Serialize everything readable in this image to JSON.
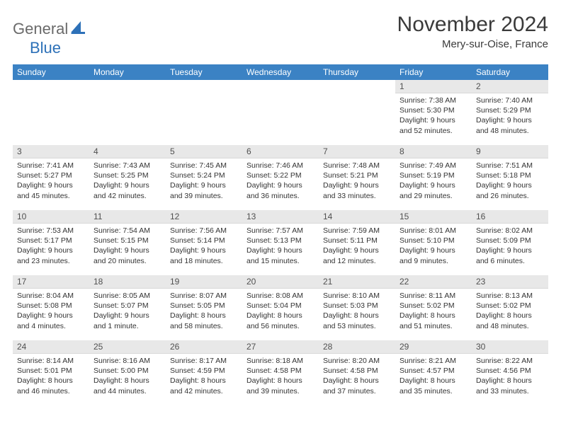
{
  "brand": {
    "part1": "General",
    "part2": "Blue"
  },
  "title": "November 2024",
  "location": "Mery-sur-Oise, France",
  "colors": {
    "header_bg": "#3b82c4",
    "header_text": "#ffffff",
    "daynum_bg": "#e8e8e8",
    "body_text": "#333333",
    "logo_gray": "#6a6a6a",
    "logo_blue": "#2d71b8"
  },
  "day_headers": [
    "Sunday",
    "Monday",
    "Tuesday",
    "Wednesday",
    "Thursday",
    "Friday",
    "Saturday"
  ],
  "weeks": [
    [
      null,
      null,
      null,
      null,
      null,
      {
        "n": "1",
        "sunrise": "Sunrise: 7:38 AM",
        "sunset": "Sunset: 5:30 PM",
        "daylight": "Daylight: 9 hours and 52 minutes."
      },
      {
        "n": "2",
        "sunrise": "Sunrise: 7:40 AM",
        "sunset": "Sunset: 5:29 PM",
        "daylight": "Daylight: 9 hours and 48 minutes."
      }
    ],
    [
      {
        "n": "3",
        "sunrise": "Sunrise: 7:41 AM",
        "sunset": "Sunset: 5:27 PM",
        "daylight": "Daylight: 9 hours and 45 minutes."
      },
      {
        "n": "4",
        "sunrise": "Sunrise: 7:43 AM",
        "sunset": "Sunset: 5:25 PM",
        "daylight": "Daylight: 9 hours and 42 minutes."
      },
      {
        "n": "5",
        "sunrise": "Sunrise: 7:45 AM",
        "sunset": "Sunset: 5:24 PM",
        "daylight": "Daylight: 9 hours and 39 minutes."
      },
      {
        "n": "6",
        "sunrise": "Sunrise: 7:46 AM",
        "sunset": "Sunset: 5:22 PM",
        "daylight": "Daylight: 9 hours and 36 minutes."
      },
      {
        "n": "7",
        "sunrise": "Sunrise: 7:48 AM",
        "sunset": "Sunset: 5:21 PM",
        "daylight": "Daylight: 9 hours and 33 minutes."
      },
      {
        "n": "8",
        "sunrise": "Sunrise: 7:49 AM",
        "sunset": "Sunset: 5:19 PM",
        "daylight": "Daylight: 9 hours and 29 minutes."
      },
      {
        "n": "9",
        "sunrise": "Sunrise: 7:51 AM",
        "sunset": "Sunset: 5:18 PM",
        "daylight": "Daylight: 9 hours and 26 minutes."
      }
    ],
    [
      {
        "n": "10",
        "sunrise": "Sunrise: 7:53 AM",
        "sunset": "Sunset: 5:17 PM",
        "daylight": "Daylight: 9 hours and 23 minutes."
      },
      {
        "n": "11",
        "sunrise": "Sunrise: 7:54 AM",
        "sunset": "Sunset: 5:15 PM",
        "daylight": "Daylight: 9 hours and 20 minutes."
      },
      {
        "n": "12",
        "sunrise": "Sunrise: 7:56 AM",
        "sunset": "Sunset: 5:14 PM",
        "daylight": "Daylight: 9 hours and 18 minutes."
      },
      {
        "n": "13",
        "sunrise": "Sunrise: 7:57 AM",
        "sunset": "Sunset: 5:13 PM",
        "daylight": "Daylight: 9 hours and 15 minutes."
      },
      {
        "n": "14",
        "sunrise": "Sunrise: 7:59 AM",
        "sunset": "Sunset: 5:11 PM",
        "daylight": "Daylight: 9 hours and 12 minutes."
      },
      {
        "n": "15",
        "sunrise": "Sunrise: 8:01 AM",
        "sunset": "Sunset: 5:10 PM",
        "daylight": "Daylight: 9 hours and 9 minutes."
      },
      {
        "n": "16",
        "sunrise": "Sunrise: 8:02 AM",
        "sunset": "Sunset: 5:09 PM",
        "daylight": "Daylight: 9 hours and 6 minutes."
      }
    ],
    [
      {
        "n": "17",
        "sunrise": "Sunrise: 8:04 AM",
        "sunset": "Sunset: 5:08 PM",
        "daylight": "Daylight: 9 hours and 4 minutes."
      },
      {
        "n": "18",
        "sunrise": "Sunrise: 8:05 AM",
        "sunset": "Sunset: 5:07 PM",
        "daylight": "Daylight: 9 hours and 1 minute."
      },
      {
        "n": "19",
        "sunrise": "Sunrise: 8:07 AM",
        "sunset": "Sunset: 5:05 PM",
        "daylight": "Daylight: 8 hours and 58 minutes."
      },
      {
        "n": "20",
        "sunrise": "Sunrise: 8:08 AM",
        "sunset": "Sunset: 5:04 PM",
        "daylight": "Daylight: 8 hours and 56 minutes."
      },
      {
        "n": "21",
        "sunrise": "Sunrise: 8:10 AM",
        "sunset": "Sunset: 5:03 PM",
        "daylight": "Daylight: 8 hours and 53 minutes."
      },
      {
        "n": "22",
        "sunrise": "Sunrise: 8:11 AM",
        "sunset": "Sunset: 5:02 PM",
        "daylight": "Daylight: 8 hours and 51 minutes."
      },
      {
        "n": "23",
        "sunrise": "Sunrise: 8:13 AM",
        "sunset": "Sunset: 5:02 PM",
        "daylight": "Daylight: 8 hours and 48 minutes."
      }
    ],
    [
      {
        "n": "24",
        "sunrise": "Sunrise: 8:14 AM",
        "sunset": "Sunset: 5:01 PM",
        "daylight": "Daylight: 8 hours and 46 minutes."
      },
      {
        "n": "25",
        "sunrise": "Sunrise: 8:16 AM",
        "sunset": "Sunset: 5:00 PM",
        "daylight": "Daylight: 8 hours and 44 minutes."
      },
      {
        "n": "26",
        "sunrise": "Sunrise: 8:17 AM",
        "sunset": "Sunset: 4:59 PM",
        "daylight": "Daylight: 8 hours and 42 minutes."
      },
      {
        "n": "27",
        "sunrise": "Sunrise: 8:18 AM",
        "sunset": "Sunset: 4:58 PM",
        "daylight": "Daylight: 8 hours and 39 minutes."
      },
      {
        "n": "28",
        "sunrise": "Sunrise: 8:20 AM",
        "sunset": "Sunset: 4:58 PM",
        "daylight": "Daylight: 8 hours and 37 minutes."
      },
      {
        "n": "29",
        "sunrise": "Sunrise: 8:21 AM",
        "sunset": "Sunset: 4:57 PM",
        "daylight": "Daylight: 8 hours and 35 minutes."
      },
      {
        "n": "30",
        "sunrise": "Sunrise: 8:22 AM",
        "sunset": "Sunset: 4:56 PM",
        "daylight": "Daylight: 8 hours and 33 minutes."
      }
    ]
  ]
}
